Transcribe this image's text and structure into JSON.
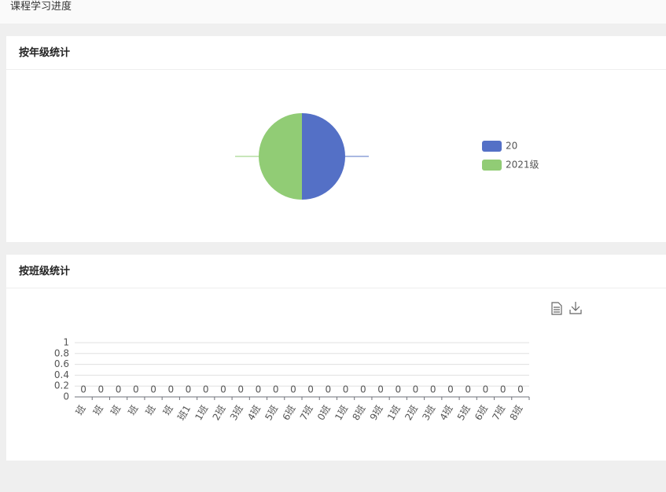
{
  "header": {
    "title": "课程学习进度"
  },
  "cards": [
    {
      "title": "按年级统计",
      "chart_data": {
        "type": "pie",
        "series": [
          {
            "name": "20",
            "color": "#5470c6",
            "value": 50
          },
          {
            "name": "2021级",
            "color": "#91cc75",
            "value": 50
          }
        ],
        "legend": "right"
      }
    },
    {
      "title": "按班级统计",
      "chart_data": {
        "type": "bar",
        "color": "#5470c6",
        "categories": [
          "班",
          "班",
          "班",
          "班",
          "班",
          "班",
          "班1",
          "1班",
          "2班",
          "3班",
          "4班",
          "5班",
          "6班",
          "7班",
          "0班",
          "1班",
          "8班",
          "9班",
          "1班",
          "2班",
          "3班",
          "4班",
          "5班",
          "6班",
          "7班",
          "8班"
        ],
        "values": [
          0,
          0,
          0,
          0,
          0,
          0,
          0,
          0,
          0,
          0,
          0,
          0,
          0,
          0,
          0,
          0,
          0,
          0,
          0,
          0,
          0,
          0,
          0,
          0,
          0,
          0
        ],
        "ylim": [
          0,
          1
        ],
        "yticks": [
          0,
          0.2,
          0.4,
          0.6,
          0.8,
          1
        ],
        "grid": true
      }
    }
  ]
}
